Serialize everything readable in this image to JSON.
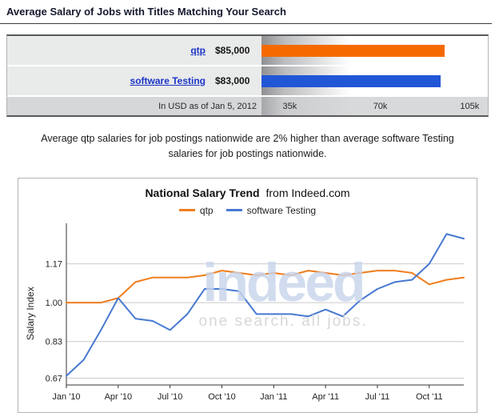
{
  "header": {
    "title": "Average Salary of Jobs with Titles Matching Your Search"
  },
  "salary_table": {
    "max_value": 105000,
    "rows": [
      {
        "label": "qtp",
        "value_text": "$85,000",
        "value": 85000,
        "color": "#f56a00"
      },
      {
        "label": "software Testing",
        "value_text": "$83,000",
        "value": 83000,
        "color": "#2156d6"
      }
    ],
    "footer": {
      "note": "In USD as of Jan 5, 2012",
      "ticks": [
        "35k",
        "70k",
        "105k"
      ]
    }
  },
  "summary_text": "Average qtp salaries for job postings nationwide are 2% higher than average software Testing salaries for job postings nationwide.",
  "chart_data": {
    "type": "line",
    "title": "National Salary Trend",
    "title_suffix": "from Indeed.com",
    "ylabel": "Salary Index",
    "ylim": [
      0.64,
      1.34
    ],
    "ytick_values": [
      0.67,
      0.83,
      1.0,
      1.17
    ],
    "ytick_labels": [
      "0.67",
      "0.83",
      "1.00",
      "1.17"
    ],
    "x_months": [
      "Jan '10",
      "Feb '10",
      "Mar '10",
      "Apr '10",
      "May '10",
      "Jun '10",
      "Jul '10",
      "Aug '10",
      "Sep '10",
      "Oct '10",
      "Nov '10",
      "Dec '10",
      "Jan '11",
      "Feb '11",
      "Mar '11",
      "Apr '11",
      "May '11",
      "Jun '11",
      "Jul '11",
      "Aug '11",
      "Sep '11",
      "Oct '11",
      "Nov '11",
      "Dec '11"
    ],
    "x_tick_positions": [
      0,
      3,
      6,
      9,
      12,
      15,
      18,
      21
    ],
    "x_tick_labels": [
      "Jan '10",
      "Apr '10",
      "Jul '10",
      "Oct '10",
      "Jan '11",
      "Apr '11",
      "Jul '11",
      "Oct '11"
    ],
    "grid": true,
    "legend_position": "top",
    "series": [
      {
        "name": "qtp",
        "color": "#ef7d1d",
        "values": [
          1.0,
          1.0,
          1.0,
          1.02,
          1.09,
          1.11,
          1.11,
          1.11,
          1.12,
          1.14,
          1.13,
          1.12,
          1.13,
          1.12,
          1.14,
          1.13,
          1.12,
          1.13,
          1.14,
          1.14,
          1.13,
          1.08,
          1.1,
          1.11
        ]
      },
      {
        "name": "software Testing",
        "color": "#4779d2",
        "values": [
          0.68,
          0.75,
          0.88,
          1.02,
          0.93,
          0.92,
          0.88,
          0.95,
          1.06,
          1.06,
          1.05,
          0.95,
          0.95,
          0.95,
          0.94,
          0.97,
          0.94,
          1.01,
          1.06,
          1.09,
          1.1,
          1.17,
          1.3,
          1.28
        ]
      }
    ],
    "watermark": {
      "text": "indeed",
      "tagline": "one search. all jobs."
    }
  }
}
